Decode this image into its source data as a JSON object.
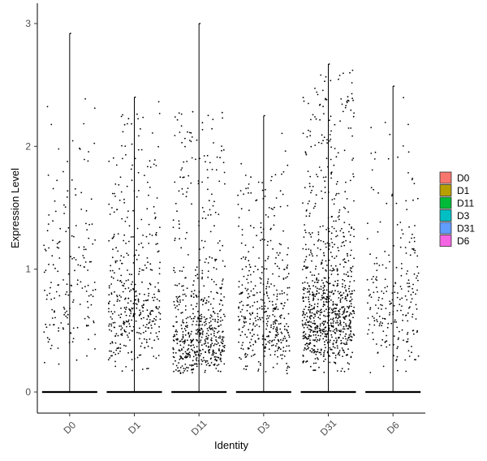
{
  "chart_data": {
    "type": "violin-jitter",
    "xlabel": "Identity",
    "ylabel": "Expression Level",
    "categories": [
      "D0",
      "D1",
      "D11",
      "D3",
      "D31",
      "D6"
    ],
    "ylim": [
      -0.15,
      3.15
    ],
    "yticks": [
      0,
      1,
      2,
      3
    ],
    "grid": false,
    "legend_position": "right",
    "legend": [
      {
        "label": "D0",
        "color": "#F8766D"
      },
      {
        "label": "D1",
        "color": "#B79F00"
      },
      {
        "label": "D11",
        "color": "#00BA38"
      },
      {
        "label": "D3",
        "color": "#00BFC4"
      },
      {
        "label": "D31",
        "color": "#619CFF"
      },
      {
        "label": "D6",
        "color": "#F564E3"
      }
    ],
    "groups": [
      {
        "name": "D0",
        "max": 2.92,
        "n_nonzero": 180,
        "median_nonzero": 0.9,
        "density_upper": 2.4
      },
      {
        "name": "D1",
        "max": 2.4,
        "n_nonzero": 420,
        "median_nonzero": 0.75,
        "density_upper": 2.3
      },
      {
        "name": "D11",
        "max": 3.0,
        "n_nonzero": 600,
        "median_nonzero": 0.45,
        "density_upper": 2.3
      },
      {
        "name": "D3",
        "max": 2.25,
        "n_nonzero": 420,
        "median_nonzero": 0.6,
        "density_upper": 1.8
      },
      {
        "name": "D31",
        "max": 2.67,
        "n_nonzero": 900,
        "median_nonzero": 0.65,
        "density_upper": 2.6
      },
      {
        "name": "D6",
        "max": 2.49,
        "n_nonzero": 240,
        "median_nonzero": 0.7,
        "density_upper": 2.2
      }
    ]
  }
}
